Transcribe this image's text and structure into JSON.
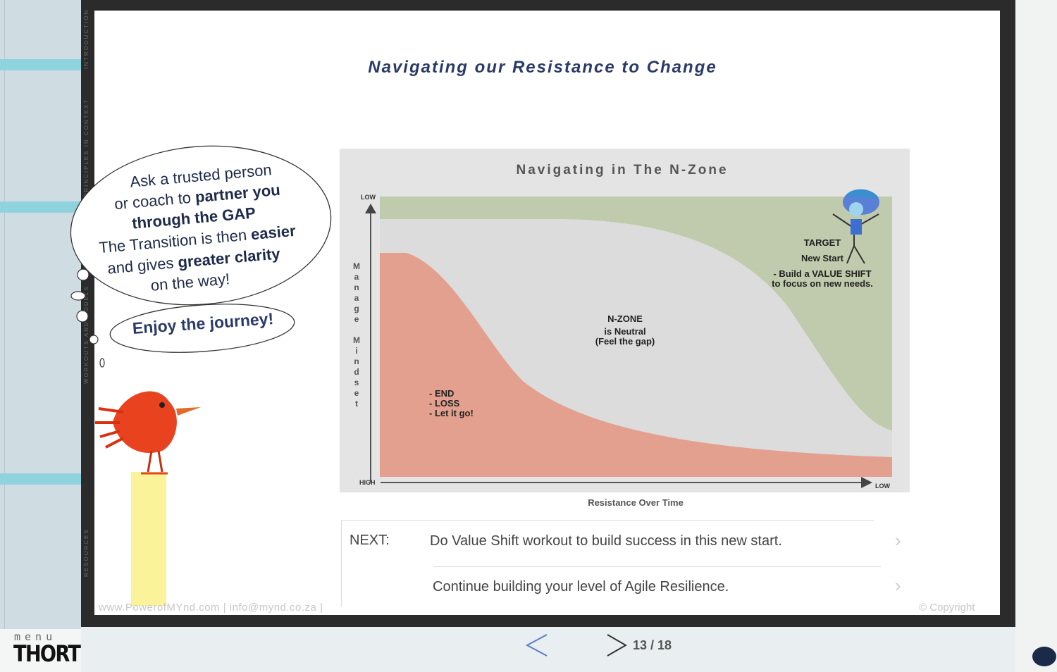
{
  "sidebar": {
    "menu_label": "menu",
    "brand": "THORT"
  },
  "vertical_tabs": [
    "WORKOUTS AND MODELS",
    "RESOURCES",
    "PRINCIPLES IN CONTEXT",
    "INTRODUCTION"
  ],
  "slide": {
    "title": "Navigating our Resistance to Change",
    "bubble": {
      "line1": "Ask a trusted person",
      "line2a": "or coach to ",
      "line2b": "partner you",
      "line3": "through the GAP",
      "line4a": "The Transition is then ",
      "line4b": "easier",
      "line5a": "and gives ",
      "line5b": "greater clarity",
      "line6": "on the way!"
    },
    "journey": "Enjoy the journey!",
    "chart_data": {
      "type": "area",
      "title": "Navigating in The N-Zone",
      "ylabel": "Manage Mindset",
      "xlabel": "Resistance  Over Time",
      "y_top_tick": "LOW",
      "y_bottom_tick": "HIGH",
      "x_end_tick": "LOW",
      "zones": [
        {
          "name": "END",
          "lines": [
            "- END",
            "- LOSS",
            "- Let it go!"
          ],
          "color": "#e3a08e"
        },
        {
          "name": "N-ZONE",
          "lines": [
            "N-ZONE",
            "is Neutral",
            "(Feel the gap)"
          ],
          "color": "#d9d9d9"
        },
        {
          "name": "TARGET",
          "lines": [
            "TARGET",
            "New Start",
            "- Build a VALUE SHIFT",
            "to focus on new needs."
          ],
          "color": "#bfcbac"
        }
      ]
    },
    "next": {
      "label": "NEXT:",
      "item1": "Do Value Shift workout to build success in this new start.",
      "item2": "Continue building your level of Agile Resilience."
    },
    "footer": {
      "links": "www.PowerofMYnd.com  |  info@mynd.co.za |",
      "copyright": "Copyright"
    }
  },
  "nav": {
    "page_counter": "13 / 18"
  },
  "colors": {
    "accent": "#8fd3df",
    "title": "#2b3a67",
    "end_zone": "#e3a08e",
    "target_zone": "#bfcbac"
  }
}
